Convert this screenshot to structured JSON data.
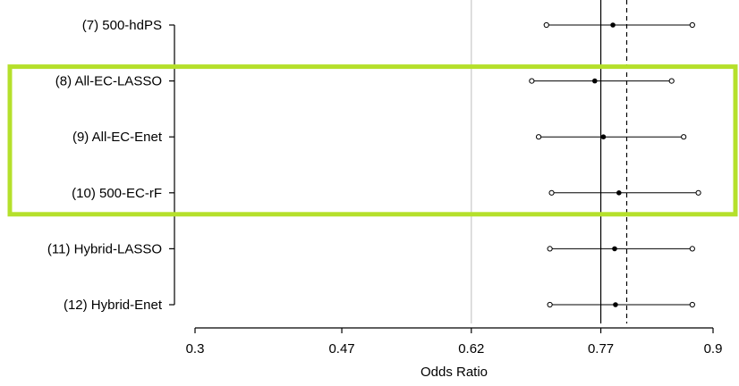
{
  "chart_data": {
    "type": "forest",
    "xlabel": "Odds Ratio",
    "xlim": [
      0.3,
      0.9
    ],
    "xticks": [
      "0.3",
      "0.47",
      "0.62",
      "0.77",
      "0.9"
    ],
    "reference_lines": {
      "gray_solid": 0.62,
      "black_solid": 0.77,
      "black_dashed": 0.8
    },
    "rows": [
      {
        "label": "(7) 500-hdPS",
        "estimate": 0.784,
        "lower": 0.707,
        "upper": 0.876
      },
      {
        "label": "(8) All-EC-LASSO",
        "estimate": 0.763,
        "lower": 0.69,
        "upper": 0.852
      },
      {
        "label": "(9) All-EC-Enet",
        "estimate": 0.773,
        "lower": 0.698,
        "upper": 0.866
      },
      {
        "label": "(10) 500-EC-rF",
        "estimate": 0.791,
        "lower": 0.713,
        "upper": 0.883
      },
      {
        "label": "(11) Hybrid-LASSO",
        "estimate": 0.786,
        "lower": 0.711,
        "upper": 0.876
      },
      {
        "label": "(12) Hybrid-Enet",
        "estimate": 0.787,
        "lower": 0.711,
        "upper": 0.876
      }
    ],
    "highlight": {
      "rows": [
        1,
        2,
        3
      ],
      "color": "#b5e02b"
    }
  }
}
